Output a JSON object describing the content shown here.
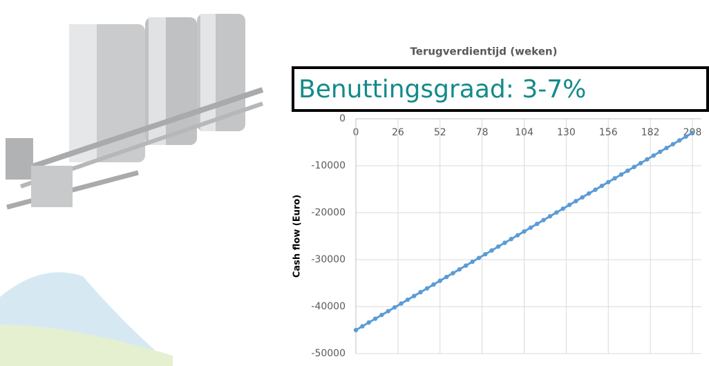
{
  "chart_data": {
    "type": "scatter",
    "title": "Terugverdientijd (weken)",
    "y_label": "Cash flow (Euro)",
    "annotation": "Benuttingsgraad: 3-7%",
    "x": [
      0,
      4,
      8,
      12,
      16,
      20,
      24,
      28,
      32,
      36,
      40,
      44,
      48,
      52,
      56,
      60,
      64,
      68,
      72,
      76,
      80,
      84,
      88,
      92,
      96,
      100,
      104,
      108,
      112,
      116,
      120,
      124,
      128,
      132,
      136,
      140,
      144,
      148,
      152,
      156,
      160,
      164,
      168,
      172,
      176,
      180,
      184,
      188,
      192,
      196,
      200,
      204,
      208
    ],
    "values": [
      -45000,
      -44192,
      -43384,
      -42576,
      -41768,
      -40960,
      -40152,
      -39344,
      -38536,
      -37728,
      -36920,
      -36112,
      -35304,
      -34496,
      -33688,
      -32880,
      -32072,
      -31264,
      -30456,
      -29648,
      -28840,
      -28032,
      -27224,
      -26416,
      -25608,
      -24800,
      -23992,
      -23184,
      -22376,
      -21568,
      -20760,
      -19952,
      -19144,
      -18336,
      -17528,
      -16720,
      -15912,
      -15104,
      -14296,
      -13488,
      -12680,
      -11872,
      -11064,
      -10256,
      -9448,
      -8640,
      -7832,
      -7024,
      -6216,
      -5408,
      -4600,
      -3792,
      -2984
    ],
    "color": "#5b9bd5",
    "xlim": [
      0,
      208
    ],
    "xticks": [
      0,
      26,
      52,
      78,
      104,
      130,
      156,
      182,
      208
    ],
    "ylim": [
      -50000,
      0
    ],
    "yticks": [
      0,
      -10000,
      -20000,
      -30000,
      -40000,
      -50000
    ],
    "grid": true
  }
}
